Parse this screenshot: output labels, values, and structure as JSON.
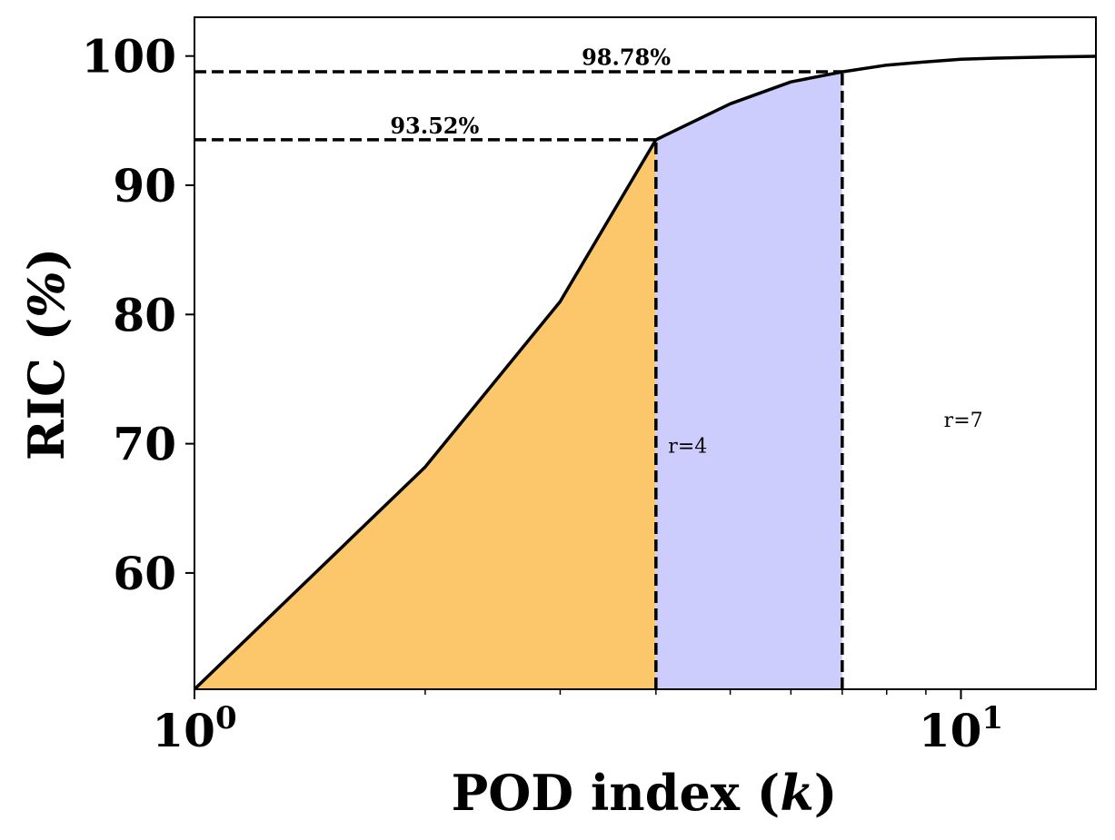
{
  "chart_data": {
    "type": "line",
    "x_scale": "log",
    "xlabel": "POD index (k)",
    "ylabel": "RIC (%)",
    "xlim": [
      1,
      15
    ],
    "ylim": [
      51,
      103
    ],
    "x_tick_labels": [
      {
        "value": 1,
        "base": "10",
        "exp": "0"
      },
      {
        "value": 10,
        "base": "10",
        "exp": "1"
      }
    ],
    "x_minor_ticks": [
      2,
      3,
      4,
      5,
      6,
      7,
      8,
      9
    ],
    "y_ticks": [
      60,
      70,
      80,
      90,
      100
    ],
    "y_tick_labels": [
      "60",
      "70",
      "80",
      "90",
      "100"
    ],
    "series": [
      {
        "name": "RIC",
        "color": "#000000",
        "x": [
          1,
          2,
          3,
          4,
          5,
          6,
          7,
          8,
          9,
          10,
          11,
          12,
          13,
          14,
          15
        ],
        "y": [
          51.0,
          68.2,
          81.0,
          93.52,
          96.3,
          98.0,
          98.78,
          99.3,
          99.55,
          99.75,
          99.83,
          99.88,
          99.92,
          99.95,
          99.98
        ]
      }
    ],
    "fills": [
      {
        "name": "fill-r4",
        "x_from": 1,
        "x_to": 4,
        "color": "#fcc76a"
      },
      {
        "name": "fill-r7",
        "x_from": 4,
        "x_to": 7,
        "color": "#cdcdfd"
      }
    ],
    "reference_lines": [
      {
        "name": "h-ref-93",
        "orientation": "horizontal",
        "y": 93.52,
        "x_from": 1,
        "x_to": 4
      },
      {
        "name": "h-ref-98",
        "orientation": "horizontal",
        "y": 98.78,
        "x_from": 1,
        "x_to": 7
      },
      {
        "name": "v-ref-4",
        "orientation": "vertical",
        "x": 4,
        "y_from": 51,
        "y_to": 93.52
      },
      {
        "name": "v-ref-7",
        "orientation": "vertical",
        "x": 7,
        "y_from": 51,
        "y_to": 98.78
      }
    ],
    "annotations": [
      {
        "name": "label-93",
        "text": "93.52%",
        "x": 1.8,
        "y": 94.0,
        "style": "annot"
      },
      {
        "name": "label-98",
        "text": "98.78%",
        "x": 3.2,
        "y": 99.3,
        "style": "annot"
      },
      {
        "name": "label-r4",
        "text": "r=4",
        "x": 4.15,
        "y": 69.3,
        "style": "annot-small"
      },
      {
        "name": "label-r7",
        "text": "r=7",
        "x": 9.5,
        "y": 71.3,
        "style": "annot-small"
      }
    ]
  }
}
